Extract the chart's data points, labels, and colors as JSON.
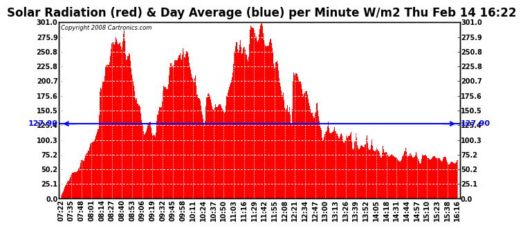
{
  "title": "Solar Radiation (red) & Day Average (blue) per Minute W/m2 Thu Feb 14 16:22",
  "copyright_text": "Copyright 2008 Cartronics.com",
  "day_average": 127.9,
  "day_average_label": "127.90",
  "ymin": 0.0,
  "ymax": 301.0,
  "yticks": [
    0.0,
    25.1,
    50.2,
    75.2,
    100.3,
    125.4,
    150.5,
    175.6,
    200.7,
    225.8,
    250.8,
    275.9,
    301.0
  ],
  "xtick_labels": [
    "07:22",
    "07:35",
    "07:48",
    "08:01",
    "08:14",
    "08:27",
    "08:40",
    "08:53",
    "09:06",
    "09:19",
    "09:32",
    "09:45",
    "09:58",
    "10:11",
    "10:24",
    "10:37",
    "10:50",
    "11:03",
    "11:16",
    "11:29",
    "11:42",
    "11:55",
    "12:08",
    "12:21",
    "12:34",
    "12:47",
    "13:00",
    "13:13",
    "13:26",
    "13:39",
    "13:52",
    "14:05",
    "14:18",
    "14:31",
    "14:44",
    "14:57",
    "15:10",
    "15:23",
    "15:38",
    "16:16"
  ],
  "bar_color": "#FF0000",
  "line_color": "#0000FF",
  "background_color": "#FFFFFF",
  "plot_bg_color": "#FFFFFF",
  "title_fontsize": 12,
  "label_fontsize": 7,
  "avg_label_fontsize": 8
}
